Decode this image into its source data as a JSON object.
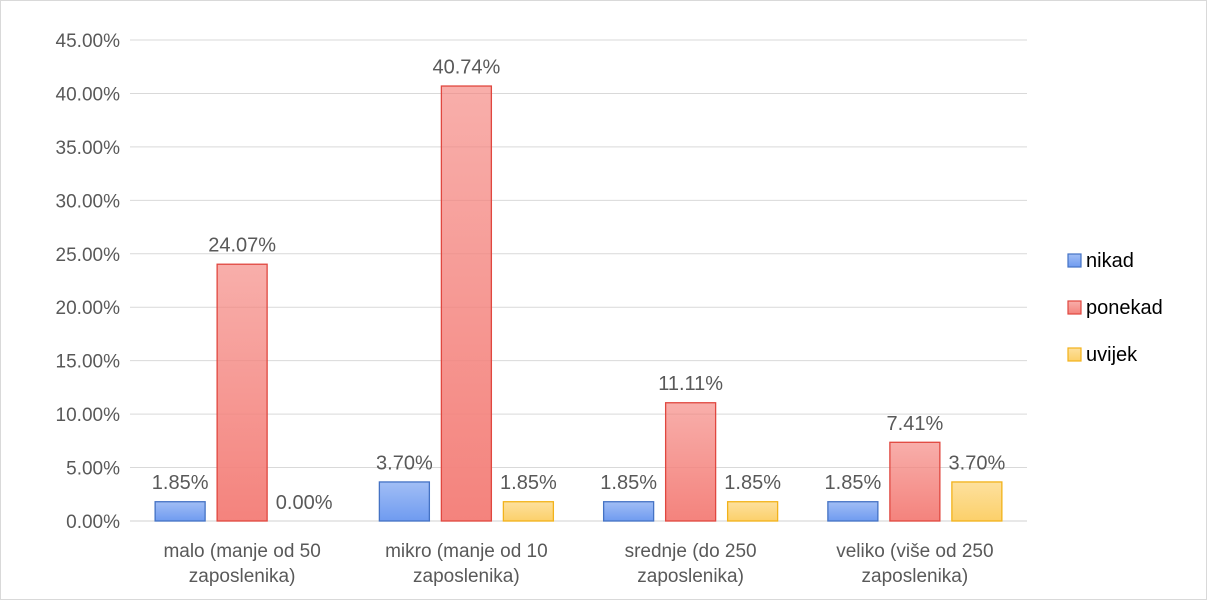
{
  "chart_data": {
    "type": "bar",
    "categories": [
      [
        "malo (manje od 50",
        "zaposlenika)"
      ],
      [
        "mikro (manje od 10",
        "zaposlenika)"
      ],
      [
        "srednje (do 250",
        "zaposlenika)"
      ],
      [
        "veliko (više od 250",
        "zaposlenika)"
      ]
    ],
    "series": [
      {
        "name": "nikad",
        "values": [
          1.85,
          3.7,
          1.85,
          1.85
        ],
        "labels": [
          "1.85%",
          "3.70%",
          "1.85%",
          "1.85%"
        ],
        "color": "#6f9bf0",
        "border": "#4472c4"
      },
      {
        "name": "ponekad",
        "values": [
          24.07,
          40.74,
          11.11,
          7.41
        ],
        "labels": [
          "24.07%",
          "40.74%",
          "11.11%",
          "7.41%"
        ],
        "color": "#f4837d",
        "border": "#e0473f"
      },
      {
        "name": "uvijek",
        "values": [
          0.0,
          1.85,
          1.85,
          3.7
        ],
        "labels": [
          "0.00%",
          "1.85%",
          "1.85%",
          "3.70%"
        ],
        "color": "#fcd06a",
        "border": "#f2b21a"
      }
    ],
    "yticks": [
      "0.00%",
      "5.00%",
      "10.00%",
      "15.00%",
      "20.00%",
      "25.00%",
      "30.00%",
      "35.00%",
      "40.00%",
      "45.00%"
    ],
    "ylim": [
      0,
      45
    ],
    "grid": true,
    "legend_position": "right"
  }
}
